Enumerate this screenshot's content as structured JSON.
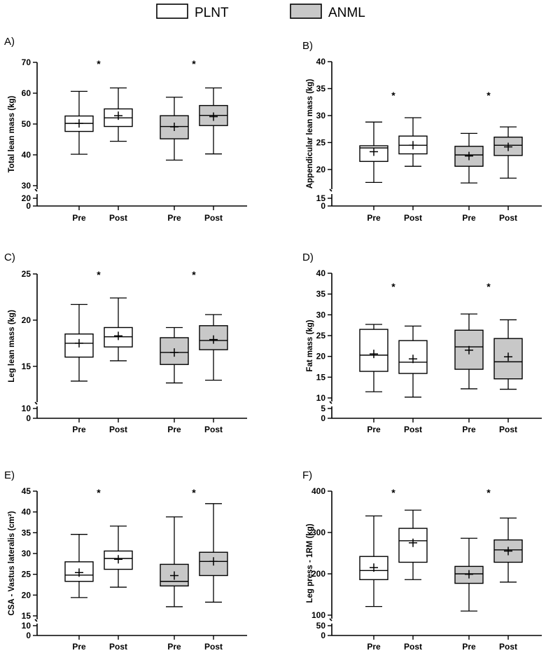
{
  "legend": {
    "plnt": {
      "label": "PLNT",
      "color": "#ffffff"
    },
    "anml": {
      "label": "ANML",
      "color": "#c8c8c8"
    }
  },
  "chart_data": [
    {
      "type": "box",
      "panel_label": "A)",
      "ylabel": "Total lean mass (kg)",
      "yticks_main": [
        30,
        40,
        50,
        60,
        70
      ],
      "yticks_low": [
        0,
        20
      ],
      "ylim_main": [
        30,
        70
      ],
      "categories": [
        "Pre",
        "Post",
        "Pre",
        "Post"
      ],
      "significance": [
        "*",
        "*"
      ],
      "boxes": [
        {
          "group": "PLNT",
          "time": "Pre",
          "min": 40.2,
          "q1": 47.6,
          "median": 50.2,
          "q3": 52.6,
          "max": 60.6,
          "mean": 50.2
        },
        {
          "group": "PLNT",
          "time": "Post",
          "min": 44.4,
          "q1": 49.2,
          "median": 52.0,
          "q3": 54.9,
          "max": 61.7,
          "mean": 52.7
        },
        {
          "group": "ANML",
          "time": "Pre",
          "min": 38.3,
          "q1": 45.2,
          "median": 49.2,
          "q3": 52.7,
          "max": 58.7,
          "mean": 49.1
        },
        {
          "group": "ANML",
          "time": "Post",
          "min": 40.3,
          "q1": 49.5,
          "median": 52.8,
          "q3": 56.0,
          "max": 61.7,
          "mean": 52.4
        }
      ]
    },
    {
      "type": "box",
      "panel_label": "B)",
      "ylabel": "Appendicular lean mass (kg)",
      "yticks_main": [
        20,
        25,
        30,
        35,
        40
      ],
      "yticks_low": [
        0,
        15
      ],
      "ylim_main": [
        17,
        40
      ],
      "categories": [
        "Pre",
        "Post",
        "Pre",
        "Post"
      ],
      "significance": [
        "*",
        "*"
      ],
      "boxes": [
        {
          "group": "PLNT",
          "time": "Pre",
          "min": 17.6,
          "q1": 21.5,
          "median": 24.0,
          "q3": 24.4,
          "max": 28.8,
          "mean": 23.3
        },
        {
          "group": "PLNT",
          "time": "Post",
          "min": 20.6,
          "q1": 22.9,
          "median": 24.5,
          "q3": 26.2,
          "max": 29.6,
          "mean": 24.5
        },
        {
          "group": "ANML",
          "time": "Pre",
          "min": 17.5,
          "q1": 20.6,
          "median": 22.7,
          "q3": 24.3,
          "max": 26.7,
          "mean": 22.5
        },
        {
          "group": "ANML",
          "time": "Post",
          "min": 18.4,
          "q1": 22.6,
          "median": 24.5,
          "q3": 26.0,
          "max": 27.9,
          "mean": 24.2
        }
      ]
    },
    {
      "type": "box",
      "panel_label": "C)",
      "ylabel": "Leg lean mass (kg)",
      "yticks_main": [
        15,
        20,
        25
      ],
      "yticks_low": [
        0,
        10
      ],
      "ylim_main": [
        11.5,
        25
      ],
      "categories": [
        "Pre",
        "Post",
        "Pre",
        "Post"
      ],
      "significance": [
        "*",
        "*"
      ],
      "boxes": [
        {
          "group": "PLNT",
          "time": "Pre",
          "min": 13.4,
          "q1": 16.0,
          "median": 17.5,
          "q3": 18.5,
          "max": 21.7,
          "mean": 17.5
        },
        {
          "group": "PLNT",
          "time": "Post",
          "min": 15.6,
          "q1": 17.1,
          "median": 18.2,
          "q3": 19.2,
          "max": 22.4,
          "mean": 18.3
        },
        {
          "group": "ANML",
          "time": "Pre",
          "min": 13.2,
          "q1": 15.2,
          "median": 16.5,
          "q3": 18.1,
          "max": 19.2,
          "mean": 16.5
        },
        {
          "group": "ANML",
          "time": "Post",
          "min": 13.5,
          "q1": 16.8,
          "median": 17.8,
          "q3": 19.4,
          "max": 20.6,
          "mean": 17.9
        }
      ]
    },
    {
      "type": "box",
      "panel_label": "D)",
      "ylabel": "Fat mass (kg)",
      "yticks_main": [
        10,
        15,
        20,
        25,
        30,
        35,
        40
      ],
      "yticks_low": [
        0,
        5
      ],
      "ylim_main": [
        10,
        40
      ],
      "categories": [
        "Pre",
        "Post",
        "Pre",
        "Post"
      ],
      "significance": [
        "*",
        "*"
      ],
      "boxes": [
        {
          "group": "PLNT",
          "time": "Pre",
          "min": 11.5,
          "q1": 16.4,
          "median": 20.3,
          "q3": 26.5,
          "max": 27.7,
          "mean": 20.6
        },
        {
          "group": "PLNT",
          "time": "Post",
          "min": 10.2,
          "q1": 15.9,
          "median": 18.6,
          "q3": 23.8,
          "max": 27.3,
          "mean": 19.4
        },
        {
          "group": "ANML",
          "time": "Pre",
          "min": 12.2,
          "q1": 16.9,
          "median": 22.3,
          "q3": 26.3,
          "max": 30.2,
          "mean": 21.5
        },
        {
          "group": "ANML",
          "time": "Post",
          "min": 12.1,
          "q1": 14.6,
          "median": 18.7,
          "q3": 24.3,
          "max": 28.8,
          "mean": 19.9
        }
      ]
    },
    {
      "type": "box",
      "panel_label": "E)",
      "ylabel": "CSA - Vastus lateralis (cm²)",
      "yticks_main": [
        15,
        20,
        25,
        30,
        35,
        40,
        45
      ],
      "yticks_low": [
        0,
        10
      ],
      "ylim_main": [
        15,
        45
      ],
      "categories": [
        "Pre",
        "Post",
        "Pre",
        "Post"
      ],
      "significance": [
        "*",
        "*"
      ],
      "boxes": [
        {
          "group": "PLNT",
          "time": "Pre",
          "min": 19.4,
          "q1": 23.3,
          "median": 24.8,
          "q3": 28.0,
          "max": 34.6,
          "mean": 25.4
        },
        {
          "group": "PLNT",
          "time": "Post",
          "min": 21.9,
          "q1": 26.2,
          "median": 28.8,
          "q3": 30.6,
          "max": 36.6,
          "mean": 28.6
        },
        {
          "group": "ANML",
          "time": "Pre",
          "min": 17.2,
          "q1": 22.2,
          "median": 23.3,
          "q3": 27.4,
          "max": 38.8,
          "mean": 24.7
        },
        {
          "group": "ANML",
          "time": "Post",
          "min": 18.3,
          "q1": 24.7,
          "median": 28.1,
          "q3": 30.3,
          "max": 42.0,
          "mean": 28.1
        }
      ]
    },
    {
      "type": "box",
      "panel_label": "F)",
      "ylabel": "Leg press - 1RM (kg)",
      "yticks_main": [
        100,
        200,
        300,
        400
      ],
      "yticks_low": [
        0,
        50
      ],
      "ylim_main": [
        100,
        400
      ],
      "categories": [
        "Pre",
        "Post",
        "Pre",
        "Post"
      ],
      "significance": [
        "*",
        "*"
      ],
      "boxes": [
        {
          "group": "PLNT",
          "time": "Pre",
          "min": 121,
          "q1": 186,
          "median": 208,
          "q3": 242,
          "max": 340,
          "mean": 215
        },
        {
          "group": "PLNT",
          "time": "Post",
          "min": 186,
          "q1": 228,
          "median": 280,
          "q3": 310,
          "max": 354,
          "mean": 275
        },
        {
          "group": "ANML",
          "time": "Pre",
          "min": 110,
          "q1": 177,
          "median": 200,
          "q3": 218,
          "max": 286,
          "mean": 199
        },
        {
          "group": "ANML",
          "time": "Post",
          "min": 180,
          "q1": 228,
          "median": 258,
          "q3": 282,
          "max": 335,
          "mean": 255
        }
      ]
    }
  ]
}
